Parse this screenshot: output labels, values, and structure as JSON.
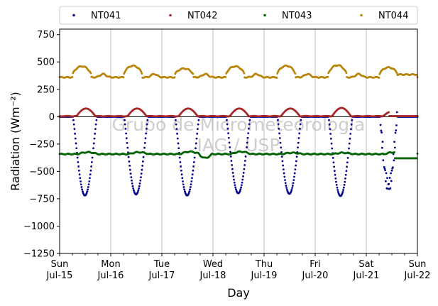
{
  "chart_data": {
    "type": "scatter",
    "ylabel": "Radiation (Wm⁻²)",
    "xlabel": "Day",
    "ylim": [
      -1250,
      800
    ],
    "xlim": [
      0,
      7
    ],
    "yticks": [
      750,
      500,
      250,
      0,
      -250,
      -500,
      -750,
      -1000,
      -1250
    ],
    "xticks": [
      {
        "x": 0,
        "line1": "Sun",
        "line2": "Jul-15"
      },
      {
        "x": 1,
        "line1": "Mon",
        "line2": "Jul-16"
      },
      {
        "x": 2,
        "line1": "Tue",
        "line2": "Jul-17"
      },
      {
        "x": 3,
        "line1": "Wed",
        "line2": "Jul-18"
      },
      {
        "x": 4,
        "line1": "Thu",
        "line2": "Jul-19"
      },
      {
        "x": 5,
        "line1": "Fri",
        "line2": "Jul-20"
      },
      {
        "x": 6,
        "line1": "Sat",
        "line2": "Jul-21"
      },
      {
        "x": 7,
        "line1": "Sun",
        "line2": "Jul-22"
      }
    ],
    "grid": "vertical",
    "legend_position": "top",
    "watermark": [
      "Grupo de Micrometeorologia",
      "IAG / USP"
    ],
    "series": [
      {
        "name": "NT041",
        "color": "#00008b",
        "daily_min": [
          -720,
          -710,
          -720,
          -700,
          -705,
          -725,
          -630
        ],
        "night_value": 0
      },
      {
        "name": "NT042",
        "color": "#a52a2a",
        "daily_peak": [
          75,
          75,
          75,
          75,
          75,
          80,
          50
        ],
        "night_value": 5
      },
      {
        "name": "NT043",
        "color": "#006400",
        "daily_peak": [
          -325,
          -325,
          -320,
          -320,
          -330,
          -330,
          -325
        ],
        "night_value": -340
      },
      {
        "name": "NT044",
        "color": "#b8860b",
        "daily_peak": [
          460,
          465,
          440,
          460,
          465,
          470,
          450
        ],
        "night_value": 365
      }
    ]
  }
}
